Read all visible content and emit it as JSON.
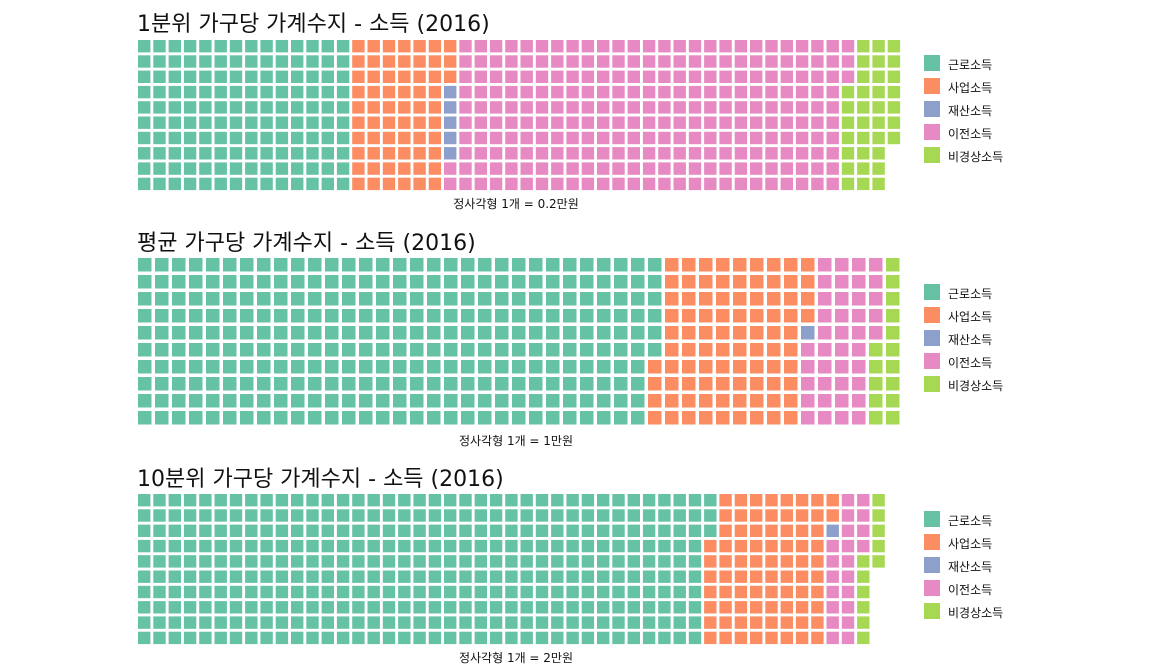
{
  "colors": {
    "근로소득": "#66c2a5",
    "사업소득": "#fc8d62",
    "재산소득": "#8da0cb",
    "이전소득": "#e78ac3",
    "비경상소득": "#a6d854"
  },
  "chart_data": [
    {
      "type": "waffle",
      "title": "1분위 가구당 가계수지 - 소득 (2016)",
      "caption": "정사각형 1개 = 0.2만원",
      "rows": 10,
      "categories": [
        "근로소득",
        "사업소득",
        "재산소득",
        "이전소득",
        "비경상소득"
      ],
      "values": [
        140,
        63,
        5,
        255,
        34
      ],
      "legend": [
        "근로소득",
        "사업소득",
        "재산소득",
        "이전소득",
        "비경상소득"
      ]
    },
    {
      "type": "waffle",
      "title": "평균 가구당 가계수지 - 소득 (2016)",
      "caption": "정사각형 1개 = 1만원",
      "rows": 10,
      "categories": [
        "근로소득",
        "사업소득",
        "재산소득",
        "이전소득",
        "비경상소득"
      ],
      "values": [
        306,
        88,
        1,
        40,
        15
      ],
      "legend": [
        "근로소득",
        "사업소득",
        "재산소득",
        "이전소득",
        "비경상소득"
      ]
    },
    {
      "type": "waffle",
      "title": "10분위 가구당 가계수지 - 소득 (2016)",
      "caption": "정사각형 1개 = 2만원",
      "rows": 10,
      "categories": [
        "근로소득",
        "사업소득",
        "재산소득",
        "이전소득",
        "비경상소득"
      ],
      "values": [
        373,
        79,
        1,
        21,
        11
      ],
      "legend": [
        "근로소득",
        "사업소득",
        "재산소득",
        "이전소득",
        "비경상소득"
      ]
    }
  ]
}
